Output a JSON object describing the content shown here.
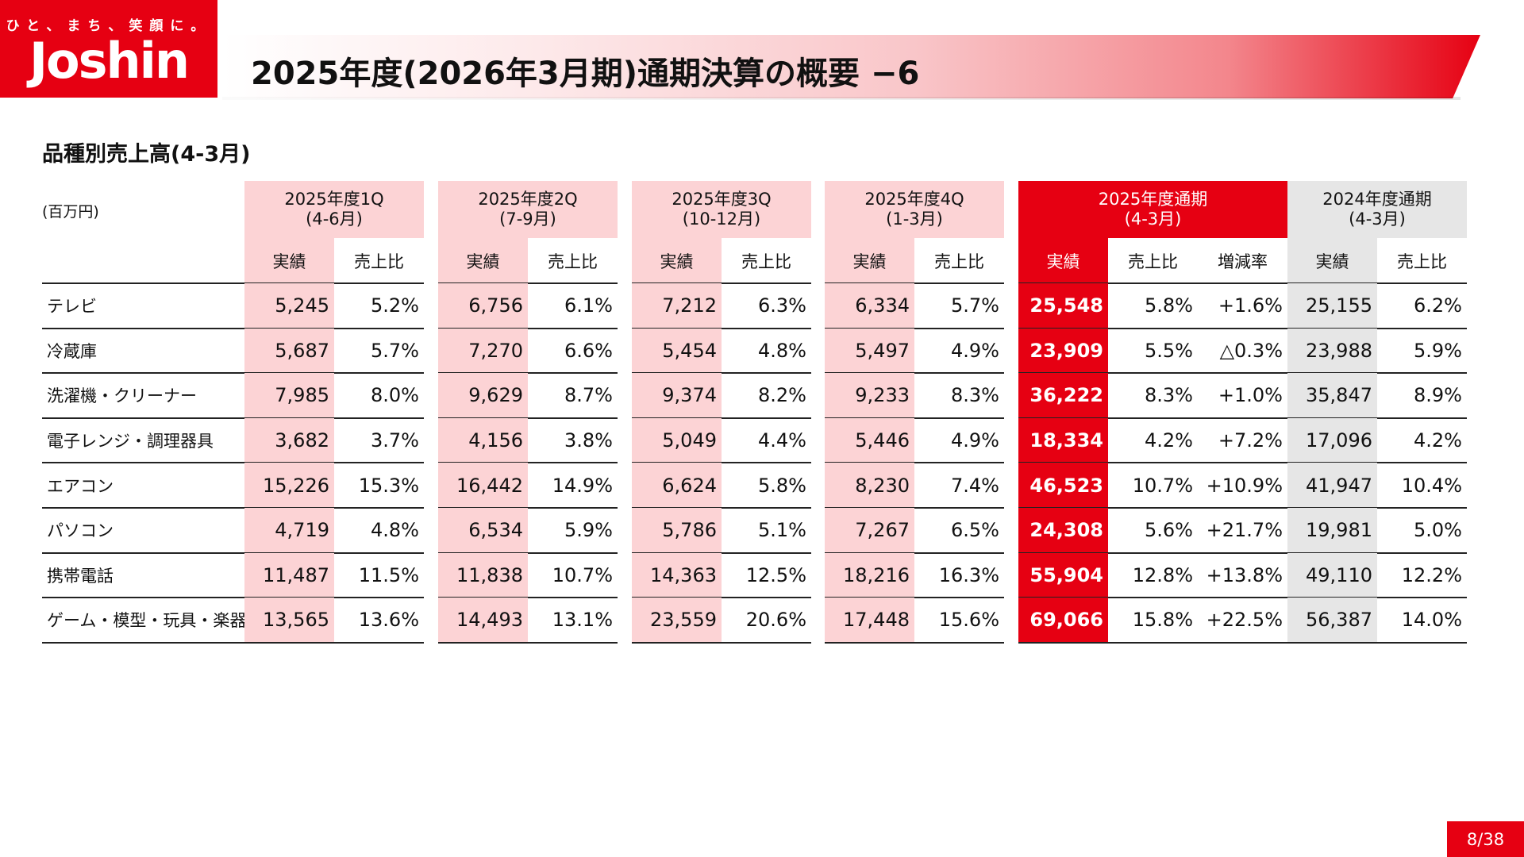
{
  "logo": {
    "tagline": "ひと、まち、笑顔に。",
    "name": "Joshin"
  },
  "title": "2025年度(2026年3月期)通期決算の概要 −6",
  "section_title": "品種別売上高(4-3月)",
  "unit": "(百万円)",
  "periods": [
    {
      "label": "2025年度1Q",
      "range": "(4-6月)"
    },
    {
      "label": "2025年度2Q",
      "range": "(7-9月)"
    },
    {
      "label": "2025年度3Q",
      "range": "(10-12月)"
    },
    {
      "label": "2025年度4Q",
      "range": "(1-3月)"
    },
    {
      "label": "2025年度通期",
      "range": "(4-3月)"
    },
    {
      "label": "2024年度通期",
      "range": "(4-3月)"
    }
  ],
  "sub_headers": {
    "actual": "実績",
    "share": "売上比",
    "change": "増減率"
  },
  "rows": [
    {
      "label": "テレビ",
      "values": [
        "5,245",
        "5.2%",
        "6,756",
        "6.1%",
        "7,212",
        "6.3%",
        "6,334",
        "5.7%",
        "25,548",
        "5.8%",
        "+1.6%",
        "25,155",
        "6.2%"
      ]
    },
    {
      "label": "冷蔵庫",
      "values": [
        "5,687",
        "5.7%",
        "7,270",
        "6.6%",
        "5,454",
        "4.8%",
        "5,497",
        "4.9%",
        "23,909",
        "5.5%",
        "△0.3%",
        "23,988",
        "5.9%"
      ]
    },
    {
      "label": "洗濯機・クリーナー",
      "values": [
        "7,985",
        "8.0%",
        "9,629",
        "8.7%",
        "9,374",
        "8.2%",
        "9,233",
        "8.3%",
        "36,222",
        "8.3%",
        "+1.0%",
        "35,847",
        "8.9%"
      ]
    },
    {
      "label": "電子レンジ・調理器具",
      "values": [
        "3,682",
        "3.7%",
        "4,156",
        "3.8%",
        "5,049",
        "4.4%",
        "5,446",
        "4.9%",
        "18,334",
        "4.2%",
        "+7.2%",
        "17,096",
        "4.2%"
      ]
    },
    {
      "label": "エアコン",
      "values": [
        "15,226",
        "15.3%",
        "16,442",
        "14.9%",
        "6,624",
        "5.8%",
        "8,230",
        "7.4%",
        "46,523",
        "10.7%",
        "+10.9%",
        "41,947",
        "10.4%"
      ]
    },
    {
      "label": "パソコン",
      "values": [
        "4,719",
        "4.8%",
        "6,534",
        "5.9%",
        "5,786",
        "5.1%",
        "7,267",
        "6.5%",
        "24,308",
        "5.6%",
        "+21.7%",
        "19,981",
        "5.0%"
      ]
    },
    {
      "label": "携帯電話",
      "values": [
        "11,487",
        "11.5%",
        "11,838",
        "10.7%",
        "14,363",
        "12.5%",
        "18,216",
        "16.3%",
        "55,904",
        "12.8%",
        "+13.8%",
        "49,110",
        "12.2%"
      ]
    },
    {
      "label": "ゲーム・模型・玩具・楽器",
      "values": [
        "13,565",
        "13.6%",
        "14,493",
        "13.1%",
        "23,559",
        "20.6%",
        "17,448",
        "15.6%",
        "69,066",
        "15.8%",
        "+22.5%",
        "56,387",
        "14.0%"
      ]
    }
  ],
  "colors": {
    "brand_red": "#e60012",
    "pink": "#fcd3d5",
    "gray": "#e6e6e6"
  },
  "page_number": "8/38"
}
